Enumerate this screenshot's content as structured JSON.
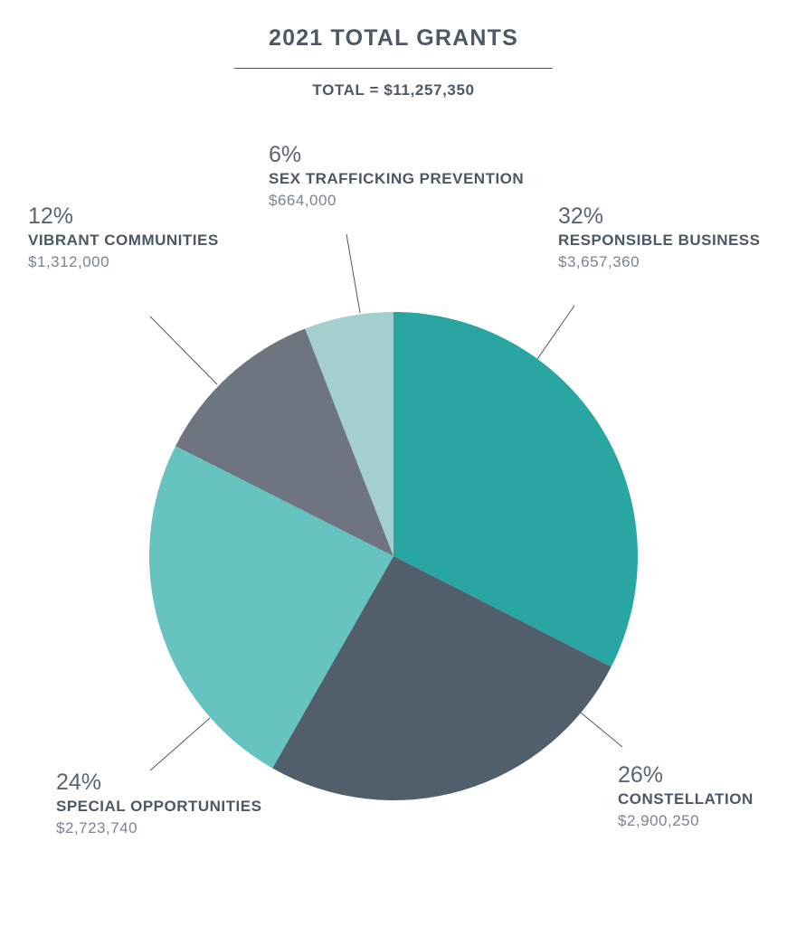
{
  "chart_data": {
    "type": "pie",
    "title": "2021 TOTAL GRANTS",
    "subtitle": "TOTAL = $11,257,350",
    "slices": [
      {
        "label": "RESPONSIBLE BUSINESS",
        "percent_label": "32%",
        "amount": "$3,657,360",
        "value": 3657360,
        "color": "#29a6a2"
      },
      {
        "label": "CONSTELLATION",
        "percent_label": "26%",
        "amount": "$2,900,250",
        "value": 2900250,
        "color": "#515f6c"
      },
      {
        "label": "SPECIAL OPPORTUNITIES",
        "percent_label": "24%",
        "amount": "$2,723,740",
        "value": 2723740,
        "color": "#66c3c0"
      },
      {
        "label": "VIBRANT COMMUNITIES",
        "percent_label": "12%",
        "amount": "$1,312,000",
        "value": 1312000,
        "color": "#6e7580"
      },
      {
        "label": "SEX TRAFFICKING PREVENTION",
        "percent_label": "6%",
        "amount": "$664,000",
        "value": 664000,
        "color": "#a3cfce"
      }
    ],
    "legend": "none"
  }
}
